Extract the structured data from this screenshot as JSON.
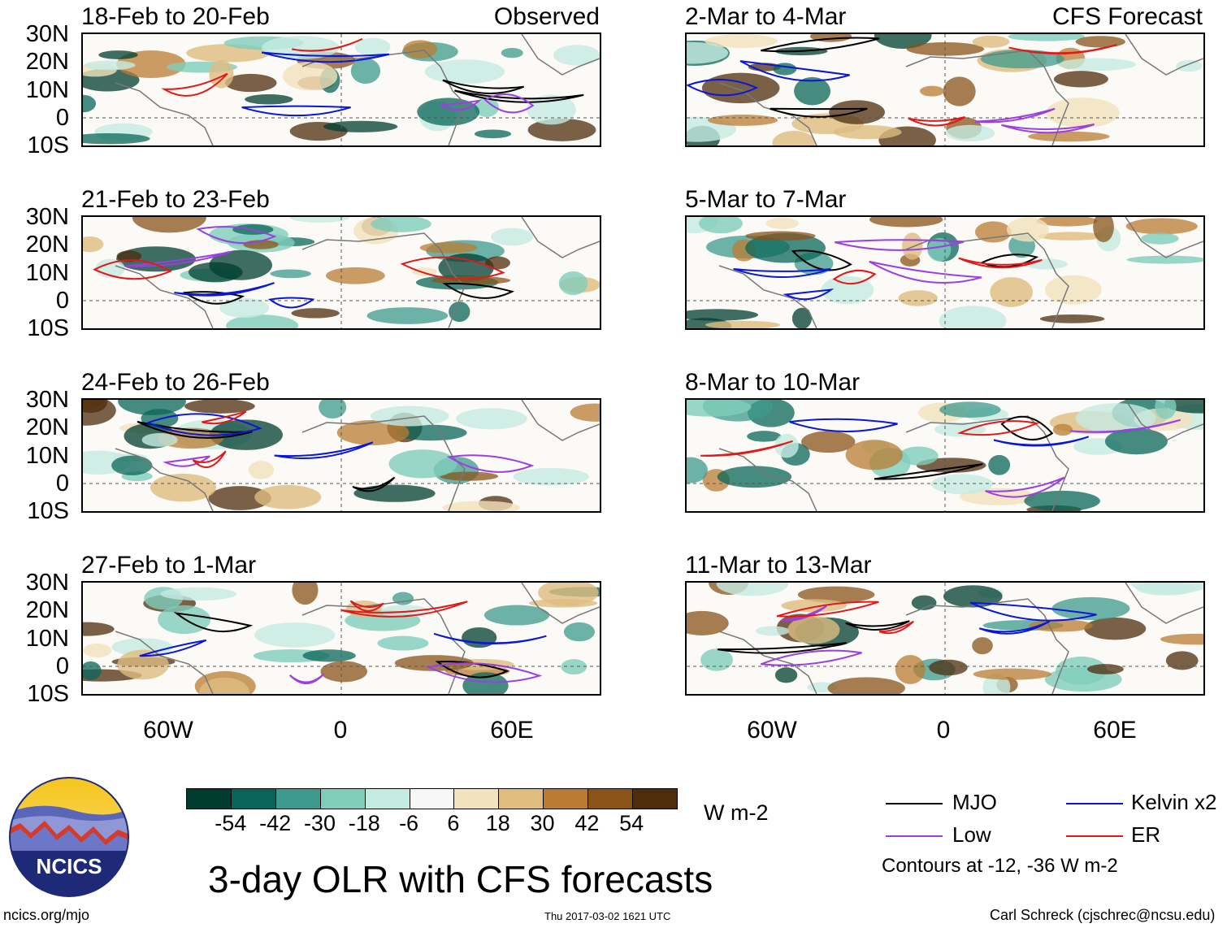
{
  "title": "3-day OLR with CFS forecasts",
  "observed_label": "Observed",
  "forecast_label": "CFS Forecast",
  "panels_left": [
    {
      "title": "18-Feb to 20-Feb"
    },
    {
      "title": "21-Feb to 23-Feb"
    },
    {
      "title": "24-Feb to 26-Feb"
    },
    {
      "title": "27-Feb to 1-Mar"
    }
  ],
  "panels_right": [
    {
      "title": "2-Mar to 4-Mar"
    },
    {
      "title": "5-Mar to 7-Mar"
    },
    {
      "title": "8-Mar to 10-Mar"
    },
    {
      "title": "11-Mar to 13-Mar"
    }
  ],
  "lat_labels": [
    "30N",
    "20N",
    "10N",
    "0",
    "10S"
  ],
  "lon_labels": [
    "60W",
    "0",
    "60E"
  ],
  "colorbar": {
    "ticks": [
      "-54",
      "-42",
      "-30",
      "-18",
      "-6",
      "6",
      "18",
      "30",
      "42",
      "54"
    ],
    "colors": [
      "#003d30",
      "#0a6558",
      "#3d9a8c",
      "#7fcdbb",
      "#c6ebe2",
      "#f7f7f7",
      "#f3e2bd",
      "#dfbd7f",
      "#b97c32",
      "#8a5318",
      "#4e2c0c"
    ],
    "units": "W m-2"
  },
  "legend": {
    "items": [
      {
        "label": "MJO",
        "color": "#000000"
      },
      {
        "label": "Kelvin x2",
        "color": "#0a17d6"
      },
      {
        "label": "Low",
        "color": "#9b3fe0"
      },
      {
        "label": "ER",
        "color": "#e01a1a"
      }
    ],
    "note": "Contours at -12, -36 W m-2"
  },
  "logo_text": "NCICS",
  "footer": {
    "url": "ncics.org/mjo",
    "timestamp": "Thu 2017-03-02 1621 UTC",
    "credit": "Carl Schreck (cjschrec@ncsu.edu)"
  }
}
